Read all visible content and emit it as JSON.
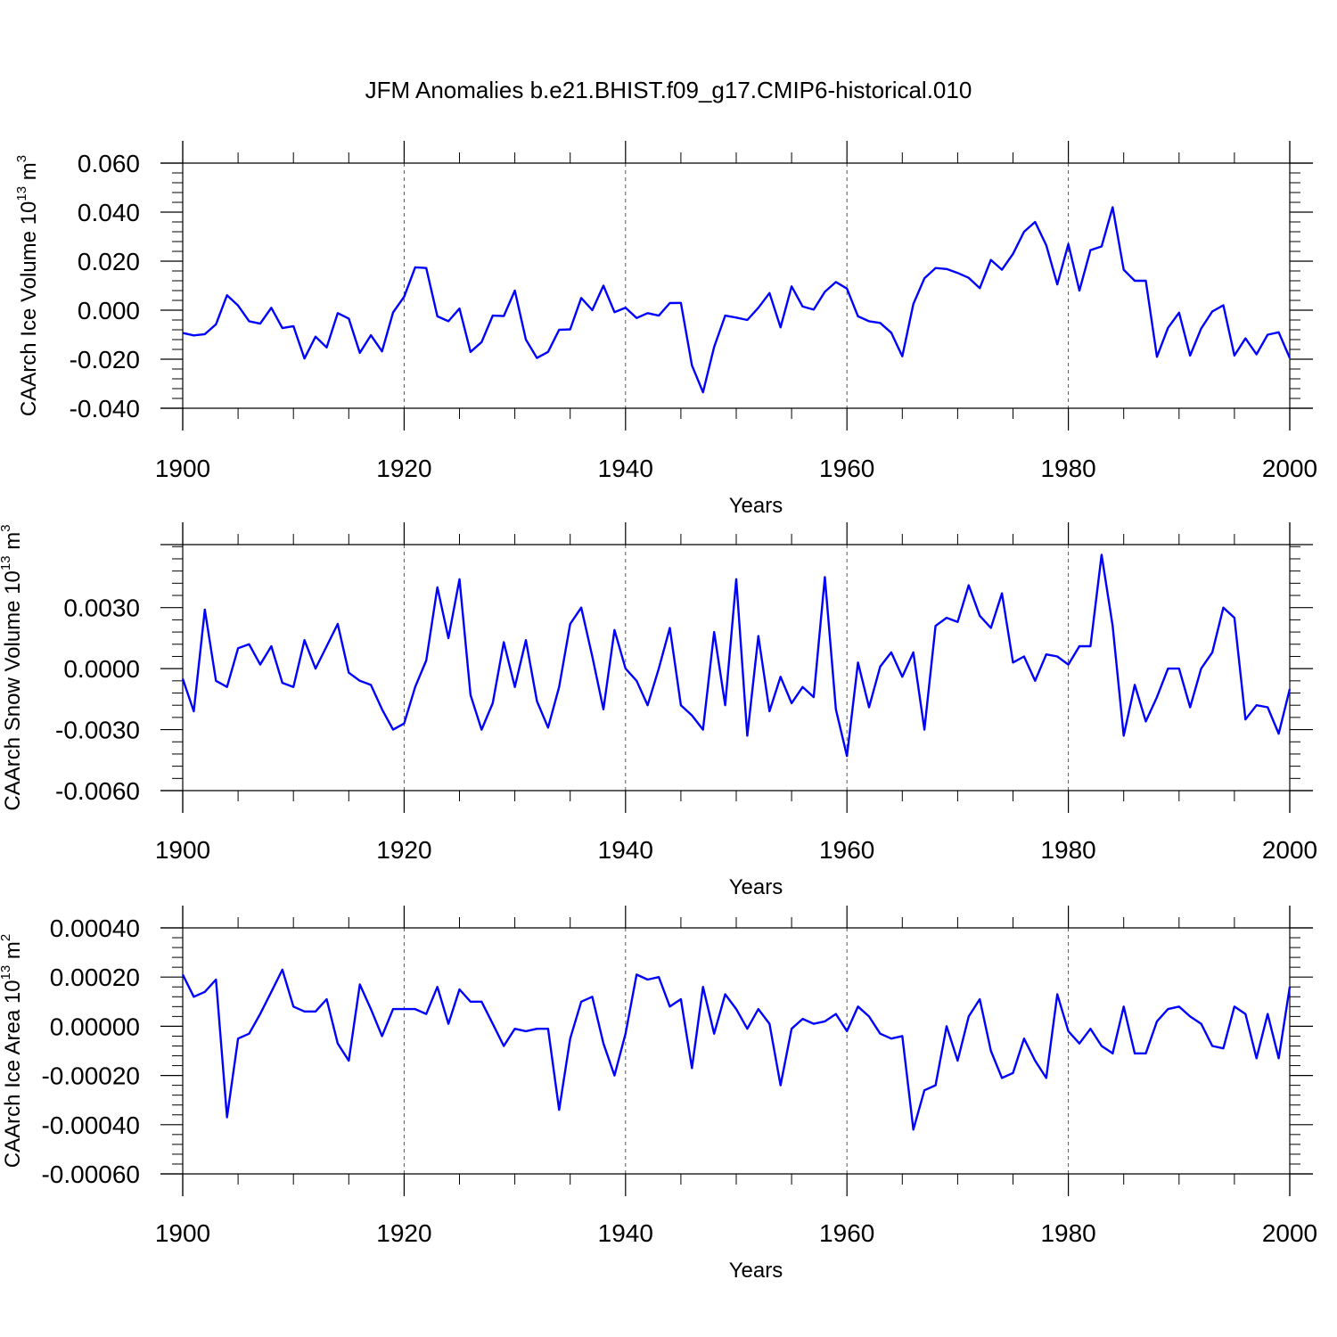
{
  "title": "JFM Anomalies b.e21.BHIST.f09_g17.CMIP6-historical.010",
  "chart_data": [
    {
      "type": "line",
      "name": "ice-volume",
      "ylabel": "CAArch Ice Volume 10",
      "ylabel_exp": "13",
      "ylabel_unit": " m",
      "ylabel_unit_exp": "3",
      "xlabel": "Years",
      "xlim": [
        1900,
        2000
      ],
      "ylim": [
        -0.04,
        0.06
      ],
      "yticks": [
        -0.04,
        -0.02,
        0.0,
        0.02,
        0.04,
        0.06
      ],
      "ytick_labels": [
        "-0.040",
        "-0.020",
        "0.000",
        "0.020",
        "0.040",
        "0.060"
      ],
      "xticks": [
        1900,
        1920,
        1940,
        1960,
        1980,
        2000
      ],
      "xtick_labels": [
        "1900",
        "1920",
        "1940",
        "1960",
        "1980",
        "2000"
      ],
      "grid_x": [
        1920,
        1940,
        1960,
        1980
      ],
      "color": "#0000ff",
      "x_start": 1900,
      "values": [
        -0.0093,
        -0.0103,
        -0.0098,
        -0.0058,
        0.0061,
        0.0019,
        -0.0045,
        -0.0055,
        0.001,
        -0.0073,
        -0.0065,
        -0.0197,
        -0.0108,
        -0.0152,
        -0.0012,
        -0.0034,
        -0.0174,
        -0.0102,
        -0.0168,
        -0.0009,
        0.0055,
        0.0175,
        0.0172,
        -0.0025,
        -0.0045,
        0.0007,
        -0.017,
        -0.013,
        -0.0022,
        -0.0024,
        0.008,
        -0.012,
        -0.0195,
        -0.017,
        -0.008,
        -0.0078,
        0.005,
        0.0,
        0.01,
        -0.0008,
        0.001,
        -0.0032,
        -0.0012,
        -0.0022,
        0.0029,
        0.003,
        -0.0225,
        -0.0335,
        -0.015,
        -0.0022,
        -0.003,
        -0.004,
        0.001,
        0.007,
        -0.007,
        0.0097,
        0.0015,
        0.0002,
        0.0075,
        0.0115,
        0.0088,
        -0.0025,
        -0.0045,
        -0.0052,
        -0.0092,
        -0.0188,
        0.0025,
        0.013,
        0.0172,
        0.0168,
        0.0152,
        0.0132,
        0.009,
        0.0205,
        0.0165,
        0.023,
        0.032,
        0.036,
        0.0265,
        0.0105,
        0.027,
        0.008,
        0.0245,
        0.026,
        0.042,
        0.0165,
        0.012,
        0.012,
        -0.019,
        -0.0072,
        -0.001,
        -0.0185,
        -0.0075,
        -0.0005,
        0.002,
        -0.0185,
        -0.0115,
        -0.018,
        -0.01,
        -0.009,
        -0.0195
      ]
    },
    {
      "type": "line",
      "name": "snow-volume",
      "ylabel": "CAArch Snow Volume 10",
      "ylabel_exp": "13",
      "ylabel_unit": " m",
      "ylabel_unit_exp": "3",
      "xlabel": "Years",
      "xlim": [
        1900,
        2000
      ],
      "ylim": [
        -0.006,
        0.0061
      ],
      "yticks": [
        -0.006,
        -0.003,
        0.0,
        0.003
      ],
      "ytick_labels": [
        "-0.0060",
        "-0.0030",
        "0.0000",
        "0.0030"
      ],
      "xticks": [
        1900,
        1920,
        1940,
        1960,
        1980,
        2000
      ],
      "xtick_labels": [
        "1900",
        "1920",
        "1940",
        "1960",
        "1980",
        "2000"
      ],
      "grid_x": [
        1920,
        1940,
        1960,
        1980
      ],
      "color": "#0000ff",
      "x_start": 1900,
      "values": [
        -0.0005,
        -0.0021,
        0.0029,
        -0.0006,
        -0.0009,
        0.001,
        0.0012,
        0.0002,
        0.0011,
        -0.0007,
        -0.0009,
        0.0014,
        0.0,
        0.0011,
        0.0022,
        -0.0002,
        -0.0006,
        -0.0008,
        -0.002,
        -0.003,
        -0.0027,
        -0.0009,
        0.0004,
        0.004,
        0.0015,
        0.0044,
        -0.0013,
        -0.003,
        -0.0017,
        0.0013,
        -0.0009,
        0.0014,
        -0.0016,
        -0.0029,
        -0.0009,
        0.0022,
        0.003,
        0.0006,
        -0.002,
        0.0019,
        0.0,
        -0.0006,
        -0.0018,
        0.0,
        0.002,
        -0.0018,
        -0.0023,
        -0.003,
        0.0018,
        -0.0018,
        0.0044,
        -0.0033,
        0.0016,
        -0.0021,
        -0.0004,
        -0.0017,
        -0.0009,
        -0.0014,
        0.0045,
        -0.002,
        -0.0043,
        0.0003,
        -0.0019,
        0.0001,
        0.0008,
        -0.0004,
        0.0008,
        -0.003,
        0.0021,
        0.0025,
        0.0023,
        0.0041,
        0.0026,
        0.002,
        0.0037,
        0.0003,
        0.0006,
        -0.0006,
        0.0007,
        0.0006,
        0.0002,
        0.0011,
        0.0011,
        0.0056,
        0.0021,
        -0.0033,
        -0.0008,
        -0.0026,
        -0.0014,
        0.0,
        0.0,
        -0.0019,
        0.0,
        0.0008,
        0.003,
        0.0025,
        -0.0025,
        -0.0018,
        -0.0019,
        -0.0032,
        -0.001
      ]
    },
    {
      "type": "line",
      "name": "ice-area",
      "ylabel": "CAArch Ice Area 10",
      "ylabel_exp": "13",
      "ylabel_unit": " m",
      "ylabel_unit_exp": "2",
      "xlabel": "Years",
      "xlim": [
        1900,
        2000
      ],
      "ylim": [
        -0.0006,
        0.0004
      ],
      "yticks": [
        -0.0006,
        -0.0004,
        -0.0002,
        0.0,
        0.0002,
        0.0004
      ],
      "ytick_labels": [
        "-0.00060",
        "-0.00040",
        "-0.00020",
        "0.00000",
        "0.00020",
        "0.00040"
      ],
      "xticks": [
        1900,
        1920,
        1940,
        1960,
        1980,
        2000
      ],
      "xtick_labels": [
        "1900",
        "1920",
        "1940",
        "1960",
        "1980",
        "2000"
      ],
      "grid_x": [
        1920,
        1940,
        1960,
        1980
      ],
      "color": "#0000ff",
      "x_start": 1900,
      "values": [
        0.00021,
        0.00012,
        0.00014,
        0.00019,
        -0.00037,
        -5e-05,
        -3e-05,
        5e-05,
        0.00014,
        0.00023,
        8e-05,
        6e-05,
        6e-05,
        0.00011,
        -7e-05,
        -0.00014,
        0.00017,
        7e-05,
        -4e-05,
        7e-05,
        7e-05,
        7e-05,
        5e-05,
        0.00016,
        1e-05,
        0.00015,
        0.0001,
        0.0001,
        1e-05,
        -8e-05,
        -1e-05,
        -2e-05,
        -1e-05,
        -1e-05,
        -0.00034,
        -5e-05,
        0.0001,
        0.00012,
        -7e-05,
        -0.0002,
        -3e-05,
        0.00021,
        0.00019,
        0.0002,
        8e-05,
        0.00011,
        -0.00017,
        0.00016,
        -3e-05,
        0.00013,
        7e-05,
        -1e-05,
        7e-05,
        1e-05,
        -0.00024,
        -1e-05,
        3e-05,
        1e-05,
        2e-05,
        5e-05,
        -2e-05,
        8e-05,
        4e-05,
        -3e-05,
        -5e-05,
        -4e-05,
        -0.00042,
        -0.00026,
        -0.00024,
        0.0,
        -0.00014,
        4e-05,
        0.00011,
        -0.0001,
        -0.00021,
        -0.00019,
        -5e-05,
        -0.00014,
        -0.00021,
        0.00013,
        -2e-05,
        -7e-05,
        -1e-05,
        -8e-05,
        -0.00011,
        8e-05,
        -0.00011,
        -0.00011,
        2e-05,
        7e-05,
        8e-05,
        4e-05,
        1e-05,
        -8e-05,
        -9e-05,
        8e-05,
        5e-05,
        -0.00013,
        5e-05,
        -0.00013,
        0.00016
      ]
    }
  ]
}
